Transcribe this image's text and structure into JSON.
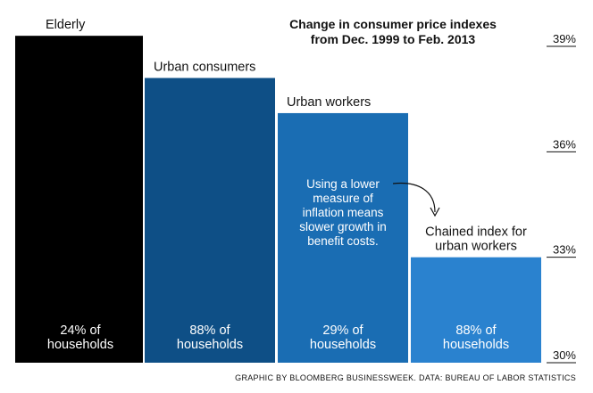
{
  "chart_data": {
    "type": "bar",
    "title": [
      "Change in consumer price indexes",
      "from Dec. 1999 to Feb. 2013"
    ],
    "categories": [
      "Elderly",
      "Urban consumers",
      "Urban workers",
      "Chained index for urban workers"
    ],
    "category_labels": [
      [
        "Elderly"
      ],
      [
        "Urban consumers"
      ],
      [
        "Urban workers"
      ],
      [
        "Chained index for",
        "urban workers"
      ]
    ],
    "values": [
      39.3,
      38.1,
      37.1,
      33.0
    ],
    "share_labels": [
      [
        "24% of",
        "households"
      ],
      [
        "88% of",
        "households"
      ],
      [
        "29% of",
        "households"
      ],
      [
        "88% of",
        "households"
      ]
    ],
    "ylim": [
      30,
      39
    ],
    "yticks": [
      30,
      33,
      36,
      39
    ],
    "ytick_labels": [
      "30%",
      "33%",
      "36%",
      "39%"
    ],
    "bar_colors": [
      "#000000",
      "#0e4f86",
      "#1a6db3",
      "#2a82cf"
    ],
    "annotation": [
      "Using a lower",
      "measure of",
      "inflation means",
      "slower growth in",
      "benefit costs."
    ],
    "source": "GRAPHIC BY BLOOMBERG BUSINESSWEEK. DATA: BUREAU OF LABOR STATISTICS"
  }
}
